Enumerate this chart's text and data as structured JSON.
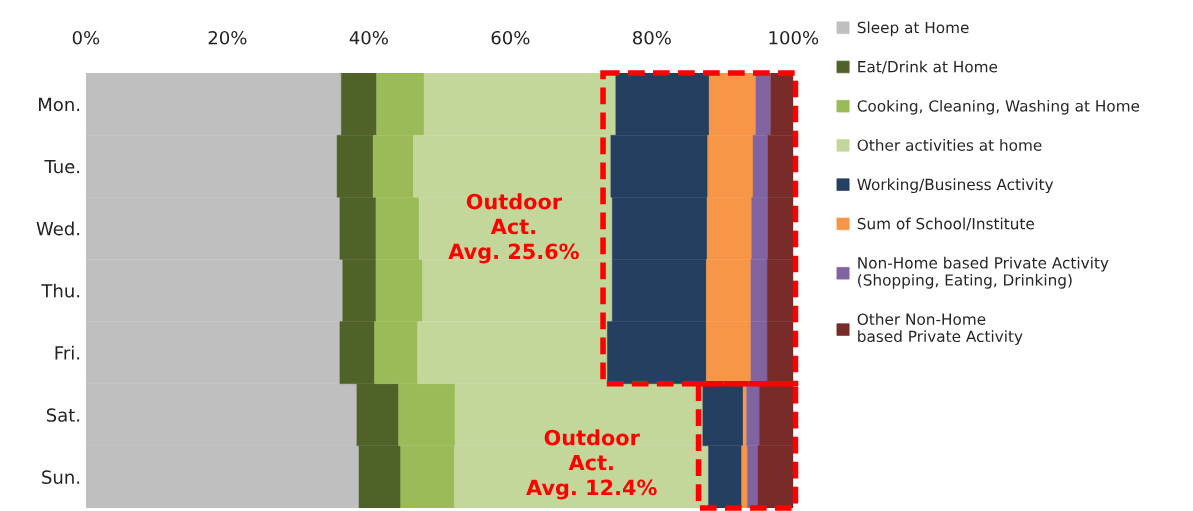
{
  "chart_data": {
    "type": "bar",
    "orientation": "horizontal",
    "stacked": true,
    "categories": [
      "Mon.",
      "Tue.",
      "Wed.",
      "Thu.",
      "Fri.",
      "Sat.",
      "Sun."
    ],
    "series": [
      {
        "name": "Sleep at Home",
        "color": "#bfbfbf",
        "values": [
          36.1,
          35.5,
          35.9,
          36.3,
          35.9,
          38.3,
          38.6
        ]
      },
      {
        "name": "Eat/Drink at Home",
        "color": "#4f6228",
        "values": [
          5.0,
          5.1,
          5.1,
          4.7,
          4.9,
          5.9,
          5.9
        ]
      },
      {
        "name": "Cooking, Cleaning, Washing at Home",
        "color": "#9bbb59",
        "values": [
          6.7,
          5.7,
          6.1,
          6.6,
          6.1,
          8.0,
          7.6
        ]
      },
      {
        "name": "Other activities at home",
        "color": "#c4d79b",
        "values": [
          27.1,
          27.9,
          27.3,
          26.8,
          26.8,
          35.0,
          35.9
        ]
      },
      {
        "name": "Working/Business Activity",
        "color": "#243f60",
        "values": [
          13.2,
          13.7,
          13.4,
          13.3,
          14.0,
          5.7,
          4.7
        ]
      },
      {
        "name": "Sum of School/Institute",
        "color": "#f79646",
        "values": [
          6.6,
          6.4,
          6.3,
          6.3,
          6.3,
          0.5,
          0.8
        ]
      },
      {
        "name": "Non-Home based Private Activity\n(Shopping, Eating, Drinking)",
        "color": "#8064a2",
        "values": [
          2.1,
          2.1,
          2.3,
          2.3,
          2.3,
          1.8,
          1.5
        ]
      },
      {
        "name": "Other Non-Home\nbased Private Activity",
        "color": "#772c2a",
        "values": [
          3.2,
          3.6,
          3.6,
          3.7,
          3.7,
          4.8,
          5.0
        ]
      }
    ],
    "xlim": [
      0,
      100
    ],
    "xticks": [
      {
        "value": 0,
        "label": "0%"
      },
      {
        "value": 20,
        "label": "20%"
      },
      {
        "value": 40,
        "label": "40%"
      },
      {
        "value": 60,
        "label": "60%"
      },
      {
        "value": 80,
        "label": "80%"
      },
      {
        "value": 100,
        "label": "100%"
      }
    ],
    "annotations": [
      "Outdoor\nAct.\nAvg. 25.6%",
      "Outdoor\nAct.\nAvg. 12.4%"
    ],
    "legend": "right",
    "grid": false
  }
}
